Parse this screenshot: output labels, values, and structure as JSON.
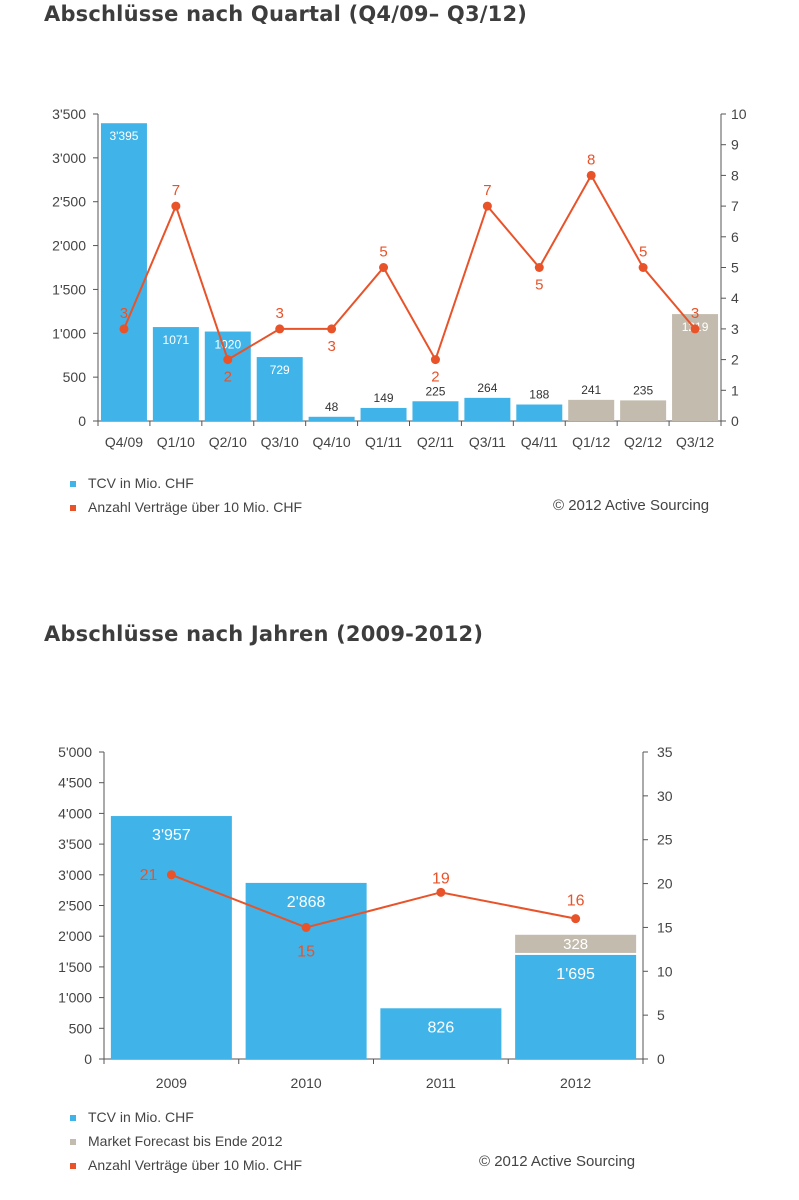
{
  "colors": {
    "tcv": "#40b4e8",
    "forecast": "#c3bcae",
    "count": "#e8532a",
    "axis": "#555555"
  },
  "chart_data": [
    {
      "type": "bar",
      "title": "Abschlüsse nach Quartal (Q4/09– Q3/12)",
      "categories": [
        "Q4/09",
        "Q1/10",
        "Q2/10",
        "Q3/10",
        "Q4/10",
        "Q1/11",
        "Q2/11",
        "Q3/11",
        "Q4/11",
        "Q1/12",
        "Q2/12",
        "Q3/12"
      ],
      "ylim": [
        0,
        3500
      ],
      "y_ticks": [
        "0",
        "500",
        "1'000",
        "1'500",
        "2'000",
        "2'500",
        "3'000",
        "3'500"
      ],
      "y2lim": [
        0,
        10
      ],
      "y2_ticks": [
        "0",
        "1",
        "2",
        "3",
        "4",
        "5",
        "6",
        "7",
        "8",
        "9",
        "10"
      ],
      "series": [
        {
          "name": "TCV in Mio. CHF",
          "type": "bar",
          "axis": "left",
          "values": [
            3395,
            1071,
            1020,
            729,
            48,
            149,
            225,
            264,
            188,
            241,
            235,
            1219
          ],
          "value_labels": [
            "3'395",
            "1071",
            "1020",
            "729",
            "48",
            "149",
            "225",
            "264",
            "188",
            "241",
            "235",
            "1219"
          ],
          "bar_colors": [
            "tcv",
            "tcv",
            "tcv",
            "tcv",
            "tcv",
            "tcv",
            "tcv",
            "tcv",
            "tcv",
            "forecast",
            "forecast",
            "forecast"
          ]
        },
        {
          "name": "Anzahl Verträge über 10 Mio. CHF",
          "type": "line",
          "axis": "right",
          "values": [
            3,
            7,
            2,
            3,
            3,
            5,
            2,
            7,
            5,
            8,
            5,
            3
          ],
          "value_labels": [
            "3",
            "7",
            "2",
            "3",
            "3",
            "5",
            "2",
            "7",
            "5",
            "8",
            "5",
            "3"
          ]
        }
      ],
      "legend": [
        {
          "label": "TCV in Mio. CHF",
          "color": "tcv"
        },
        {
          "label": "Anzahl Verträge über 10 Mio. CHF",
          "color": "count"
        }
      ],
      "legend_position": "bottom-left",
      "copyright": "© 2012 Active Sourcing"
    },
    {
      "type": "bar",
      "title": "Abschlüsse nach Jahren (2009-2012)",
      "categories": [
        "2009",
        "2010",
        "2011",
        "2012"
      ],
      "ylim": [
        0,
        5000
      ],
      "y_ticks": [
        "0",
        "500",
        "1'000",
        "1'500",
        "2'000",
        "2'500",
        "3'000",
        "3'500",
        "4'000",
        "4'500",
        "5'000"
      ],
      "y2lim": [
        0,
        35
      ],
      "y2_ticks": [
        "0",
        "5",
        "10",
        "15",
        "20",
        "25",
        "30",
        "35"
      ],
      "series": [
        {
          "name": "TCV in Mio. CHF",
          "type": "stacked-bar",
          "axis": "left",
          "values": [
            3957,
            2868,
            826,
            1695
          ],
          "value_labels": [
            "3'957",
            "2'868",
            "826",
            "1'695"
          ]
        },
        {
          "name": "Market Forecast bis Ende 2012",
          "type": "stacked-bar",
          "axis": "left",
          "values": [
            0,
            0,
            0,
            328
          ],
          "value_labels": [
            "",
            "",
            "",
            "328"
          ]
        },
        {
          "name": "Anzahl Verträge über 10 Mio. CHF",
          "type": "line",
          "axis": "right",
          "values": [
            21,
            15,
            19,
            16
          ],
          "value_labels": [
            "21",
            "15",
            "19",
            "16"
          ]
        }
      ],
      "legend": [
        {
          "label": "TCV in Mio. CHF",
          "color": "tcv"
        },
        {
          "label": "Market Forecast bis Ende 2012",
          "color": "forecast"
        },
        {
          "label": "Anzahl Verträge über 10 Mio. CHF",
          "color": "count"
        }
      ],
      "legend_position": "bottom-left",
      "copyright": "© 2012 Active Sourcing"
    }
  ]
}
